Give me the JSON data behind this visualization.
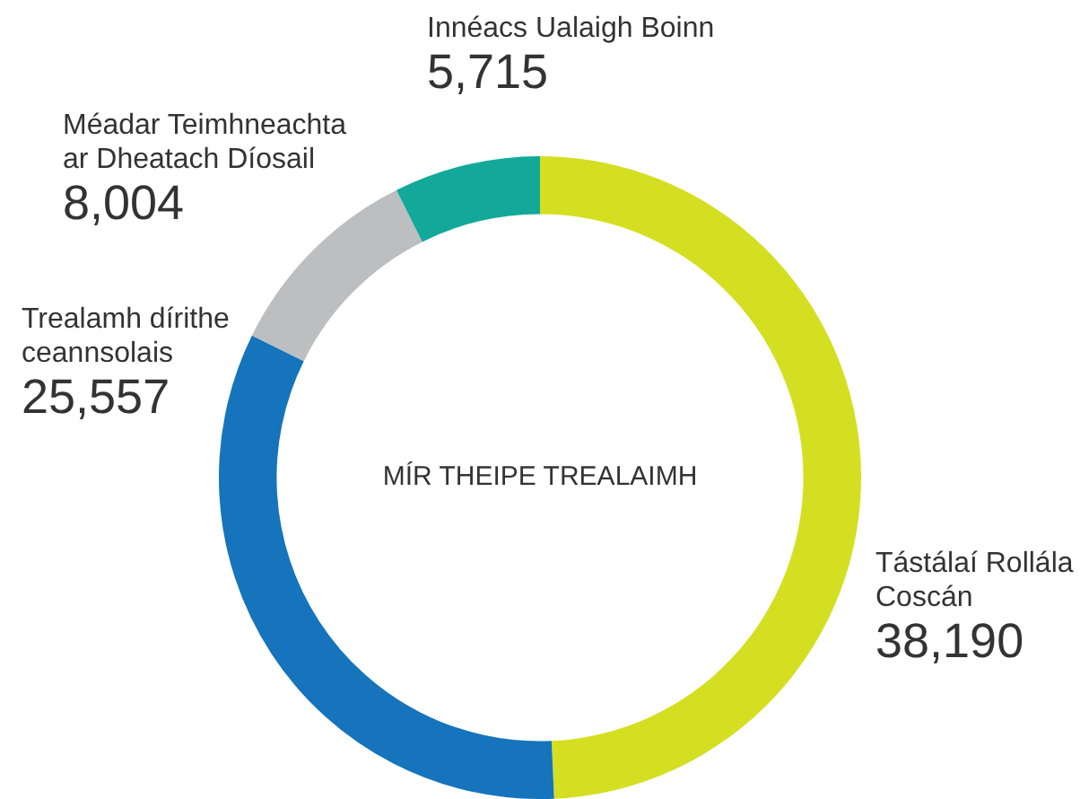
{
  "chart_data": {
    "type": "donut",
    "title": "MÍR THEIPE TREALAIMH",
    "categories": [
      "Tástálaí Rollála Coscán",
      "Trealamh dírithe ceannsolais",
      "Méadar Teimhneachta ar Dheatach Díosail",
      "Innéacs Ualaigh Boinn"
    ],
    "values": [
      38190,
      25557,
      8004,
      5715
    ],
    "colors": [
      "#d4df22",
      "#1574bb",
      "#bcbec0",
      "#13a99a"
    ],
    "value_labels": [
      "38,190",
      "25,557",
      "8,004",
      "5,715"
    ],
    "legend": false
  }
}
